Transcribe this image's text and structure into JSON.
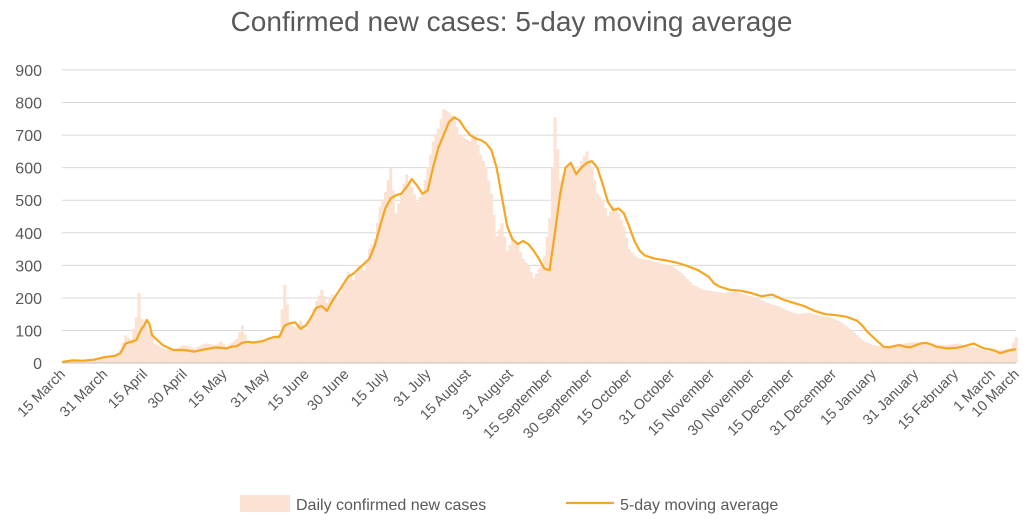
{
  "chart_data": {
    "type": "bar+line",
    "title": "Confirmed new cases: 5-day moving average",
    "xlabel": "",
    "ylabel": "",
    "ylim": [
      0,
      900
    ],
    "yticks": [
      0,
      100,
      200,
      300,
      400,
      500,
      600,
      700,
      800,
      900
    ],
    "grid": true,
    "legend_position": "bottom",
    "x_tick_labels": [
      {
        "label": "15 March",
        "day": 0
      },
      {
        "label": "31 March",
        "day": 16
      },
      {
        "label": "15 April",
        "day": 31
      },
      {
        "label": "30 April",
        "day": 46
      },
      {
        "label": "15 May",
        "day": 61
      },
      {
        "label": "31 May",
        "day": 77
      },
      {
        "label": "15 June",
        "day": 92
      },
      {
        "label": "30 June",
        "day": 107
      },
      {
        "label": "15 July",
        "day": 122
      },
      {
        "label": "31 July",
        "day": 138
      },
      {
        "label": "15 August",
        "day": 153
      },
      {
        "label": "31 August",
        "day": 169
      },
      {
        "label": "15 September",
        "day": 184
      },
      {
        "label": "30 September",
        "day": 199
      },
      {
        "label": "15 October",
        "day": 214
      },
      {
        "label": "31 October",
        "day": 230
      },
      {
        "label": "15 November",
        "day": 245
      },
      {
        "label": "30 November",
        "day": 260
      },
      {
        "label": "15 December",
        "day": 275
      },
      {
        "label": "31 December",
        "day": 291
      },
      {
        "label": "15 January",
        "day": 306
      },
      {
        "label": "31 January",
        "day": 322
      },
      {
        "label": "15 February",
        "day": 337
      },
      {
        "label": "1 March",
        "day": 351
      },
      {
        "label": "10 March",
        "day": 360
      }
    ],
    "x_day_range": [
      0,
      360
    ],
    "series": [
      {
        "name": "Daily confirmed new cases",
        "kind": "bar",
        "color": "#fbe2d2",
        "points": [
          [
            0,
            2
          ],
          [
            4,
            5
          ],
          [
            8,
            4
          ],
          [
            12,
            8
          ],
          [
            16,
            15
          ],
          [
            20,
            20
          ],
          [
            22,
            40
          ],
          [
            24,
            85
          ],
          [
            26,
            70
          ],
          [
            28,
            140
          ],
          [
            29,
            215
          ],
          [
            30,
            135
          ],
          [
            31,
            130
          ],
          [
            33,
            100
          ],
          [
            35,
            60
          ],
          [
            38,
            45
          ],
          [
            42,
            40
          ],
          [
            46,
            55
          ],
          [
            50,
            45
          ],
          [
            54,
            60
          ],
          [
            58,
            55
          ],
          [
            60,
            65
          ],
          [
            62,
            50
          ],
          [
            66,
            75
          ],
          [
            68,
            115
          ],
          [
            70,
            60
          ],
          [
            74,
            65
          ],
          [
            78,
            75
          ],
          [
            82,
            90
          ],
          [
            84,
            240
          ],
          [
            86,
            120
          ],
          [
            88,
            110
          ],
          [
            90,
            130
          ],
          [
            92,
            105
          ],
          [
            96,
            190
          ],
          [
            98,
            225
          ],
          [
            100,
            185
          ],
          [
            102,
            210
          ],
          [
            104,
            195
          ],
          [
            106,
            235
          ],
          [
            108,
            280
          ],
          [
            110,
            255
          ],
          [
            112,
            300
          ],
          [
            114,
            285
          ],
          [
            116,
            350
          ],
          [
            118,
            380
          ],
          [
            120,
            480
          ],
          [
            122,
            525
          ],
          [
            124,
            600
          ],
          [
            126,
            460
          ],
          [
            128,
            520
          ],
          [
            130,
            580
          ],
          [
            132,
            540
          ],
          [
            134,
            495
          ],
          [
            136,
            525
          ],
          [
            138,
            600
          ],
          [
            140,
            680
          ],
          [
            142,
            720
          ],
          [
            144,
            780
          ],
          [
            146,
            770
          ],
          [
            148,
            750
          ],
          [
            150,
            700
          ],
          [
            152,
            690
          ],
          [
            154,
            680
          ],
          [
            156,
            700
          ],
          [
            158,
            640
          ],
          [
            160,
            600
          ],
          [
            162,
            520
          ],
          [
            164,
            390
          ],
          [
            166,
            430
          ],
          [
            168,
            345
          ],
          [
            170,
            380
          ],
          [
            172,
            360
          ],
          [
            174,
            320
          ],
          [
            176,
            300
          ],
          [
            178,
            260
          ],
          [
            180,
            290
          ],
          [
            182,
            330
          ],
          [
            184,
            445
          ],
          [
            186,
            755
          ],
          [
            188,
            560
          ],
          [
            190,
            600
          ],
          [
            192,
            610
          ],
          [
            194,
            590
          ],
          [
            196,
            620
          ],
          [
            198,
            650
          ],
          [
            200,
            600
          ],
          [
            202,
            520
          ],
          [
            204,
            500
          ],
          [
            206,
            450
          ],
          [
            208,
            480
          ],
          [
            210,
            460
          ],
          [
            212,
            420
          ],
          [
            214,
            350
          ],
          [
            216,
            330
          ],
          [
            218,
            320
          ],
          [
            222,
            315
          ],
          [
            226,
            305
          ],
          [
            230,
            300
          ],
          [
            234,
            275
          ],
          [
            238,
            240
          ],
          [
            242,
            225
          ],
          [
            246,
            220
          ],
          [
            250,
            215
          ],
          [
            254,
            220
          ],
          [
            258,
            210
          ],
          [
            262,
            200
          ],
          [
            266,
            185
          ],
          [
            270,
            175
          ],
          [
            274,
            160
          ],
          [
            278,
            150
          ],
          [
            282,
            155
          ],
          [
            286,
            145
          ],
          [
            290,
            140
          ],
          [
            294,
            125
          ],
          [
            298,
            100
          ],
          [
            302,
            70
          ],
          [
            306,
            55
          ],
          [
            310,
            50
          ],
          [
            314,
            55
          ],
          [
            318,
            60
          ],
          [
            322,
            65
          ],
          [
            326,
            60
          ],
          [
            330,
            55
          ],
          [
            334,
            55
          ],
          [
            338,
            60
          ],
          [
            342,
            50
          ],
          [
            346,
            45
          ],
          [
            350,
            35
          ],
          [
            354,
            40
          ],
          [
            358,
            45
          ],
          [
            360,
            80
          ]
        ]
      },
      {
        "name": "5-day moving average",
        "kind": "line",
        "color": "#f5a623",
        "points": [
          [
            0,
            3
          ],
          [
            4,
            8
          ],
          [
            8,
            7
          ],
          [
            12,
            10
          ],
          [
            16,
            18
          ],
          [
            20,
            22
          ],
          [
            22,
            30
          ],
          [
            24,
            60
          ],
          [
            26,
            65
          ],
          [
            28,
            70
          ],
          [
            30,
            105
          ],
          [
            31,
            115
          ],
          [
            32,
            132
          ],
          [
            33,
            120
          ],
          [
            34,
            85
          ],
          [
            36,
            70
          ],
          [
            38,
            55
          ],
          [
            42,
            40
          ],
          [
            46,
            40
          ],
          [
            50,
            35
          ],
          [
            54,
            42
          ],
          [
            58,
            48
          ],
          [
            62,
            45
          ],
          [
            64,
            50
          ],
          [
            66,
            52
          ],
          [
            68,
            62
          ],
          [
            70,
            65
          ],
          [
            72,
            63
          ],
          [
            74,
            65
          ],
          [
            76,
            68
          ],
          [
            78,
            75
          ],
          [
            80,
            80
          ],
          [
            82,
            80
          ],
          [
            84,
            115
          ],
          [
            86,
            122
          ],
          [
            88,
            125
          ],
          [
            90,
            105
          ],
          [
            92,
            115
          ],
          [
            94,
            140
          ],
          [
            96,
            170
          ],
          [
            98,
            175
          ],
          [
            100,
            160
          ],
          [
            102,
            190
          ],
          [
            104,
            215
          ],
          [
            106,
            240
          ],
          [
            108,
            265
          ],
          [
            110,
            275
          ],
          [
            112,
            290
          ],
          [
            114,
            305
          ],
          [
            116,
            320
          ],
          [
            118,
            360
          ],
          [
            120,
            420
          ],
          [
            122,
            475
          ],
          [
            124,
            505
          ],
          [
            126,
            515
          ],
          [
            128,
            520
          ],
          [
            130,
            540
          ],
          [
            132,
            565
          ],
          [
            134,
            545
          ],
          [
            136,
            520
          ],
          [
            138,
            530
          ],
          [
            140,
            600
          ],
          [
            142,
            660
          ],
          [
            144,
            700
          ],
          [
            146,
            740
          ],
          [
            148,
            755
          ],
          [
            150,
            745
          ],
          [
            152,
            720
          ],
          [
            154,
            700
          ],
          [
            156,
            690
          ],
          [
            158,
            685
          ],
          [
            160,
            675
          ],
          [
            162,
            655
          ],
          [
            164,
            600
          ],
          [
            166,
            510
          ],
          [
            168,
            420
          ],
          [
            170,
            380
          ],
          [
            172,
            365
          ],
          [
            174,
            375
          ],
          [
            176,
            365
          ],
          [
            178,
            345
          ],
          [
            180,
            320
          ],
          [
            182,
            290
          ],
          [
            184,
            285
          ],
          [
            186,
            400
          ],
          [
            188,
            520
          ],
          [
            190,
            600
          ],
          [
            192,
            615
          ],
          [
            194,
            580
          ],
          [
            196,
            600
          ],
          [
            198,
            615
          ],
          [
            200,
            620
          ],
          [
            202,
            600
          ],
          [
            204,
            550
          ],
          [
            206,
            495
          ],
          [
            208,
            470
          ],
          [
            210,
            475
          ],
          [
            212,
            460
          ],
          [
            214,
            420
          ],
          [
            216,
            375
          ],
          [
            218,
            345
          ],
          [
            220,
            330
          ],
          [
            224,
            320
          ],
          [
            228,
            315
          ],
          [
            232,
            308
          ],
          [
            236,
            298
          ],
          [
            240,
            285
          ],
          [
            244,
            265
          ],
          [
            246,
            245
          ],
          [
            248,
            235
          ],
          [
            252,
            225
          ],
          [
            256,
            222
          ],
          [
            260,
            215
          ],
          [
            264,
            205
          ],
          [
            268,
            210
          ],
          [
            272,
            195
          ],
          [
            276,
            185
          ],
          [
            280,
            175
          ],
          [
            284,
            160
          ],
          [
            288,
            150
          ],
          [
            292,
            147
          ],
          [
            296,
            142
          ],
          [
            300,
            130
          ],
          [
            302,
            115
          ],
          [
            304,
            95
          ],
          [
            306,
            80
          ],
          [
            308,
            65
          ],
          [
            310,
            50
          ],
          [
            312,
            48
          ],
          [
            314,
            52
          ],
          [
            316,
            55
          ],
          [
            318,
            50
          ],
          [
            320,
            48
          ],
          [
            324,
            60
          ],
          [
            326,
            62
          ],
          [
            328,
            57
          ],
          [
            330,
            50
          ],
          [
            334,
            45
          ],
          [
            338,
            47
          ],
          [
            342,
            55
          ],
          [
            344,
            60
          ],
          [
            346,
            52
          ],
          [
            348,
            45
          ],
          [
            350,
            42
          ],
          [
            352,
            38
          ],
          [
            354,
            30
          ],
          [
            356,
            35
          ],
          [
            358,
            40
          ],
          [
            360,
            42
          ]
        ]
      }
    ]
  }
}
